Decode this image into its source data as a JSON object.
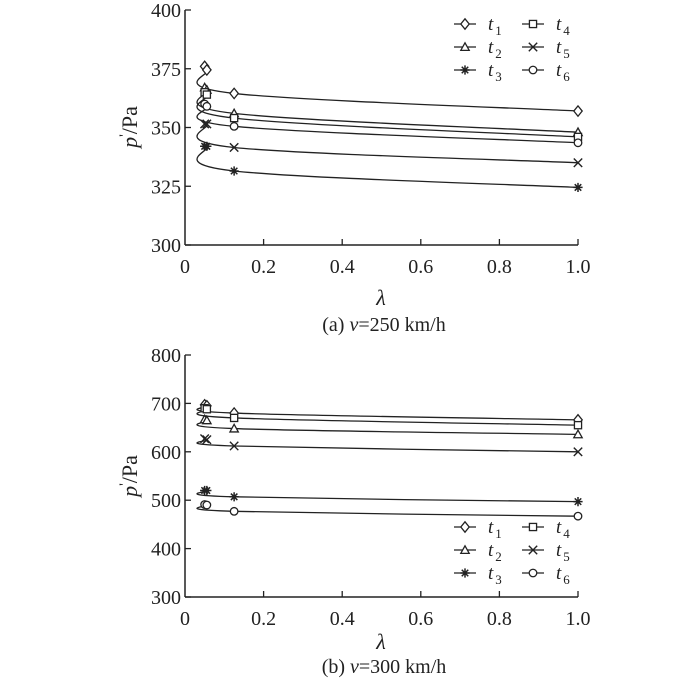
{
  "chart_data": [
    {
      "type": "line",
      "caption": {
        "prefix": "(a) ",
        "var": "v",
        "rest": "=250 km/h"
      },
      "xlabel": "λ",
      "ylabel": {
        "main": "p",
        "prime": "'",
        "unit": "/Pa"
      },
      "xlim": [
        0,
        1.0
      ],
      "ylim": [
        300,
        400
      ],
      "xticks": [
        "0",
        "0.2",
        "0.4",
        "0.6",
        "0.8",
        "1.0"
      ],
      "xtick_values": [
        0,
        0.2,
        0.4,
        0.6,
        0.8,
        1.0
      ],
      "yticks": [
        "300",
        "325",
        "350",
        "375",
        "400"
      ],
      "ytick_values": [
        300,
        325,
        350,
        375,
        400
      ],
      "grid": false,
      "legend_position": "top-right",
      "x": [
        0.05,
        0.0556,
        0.125,
        1.0
      ],
      "series": [
        {
          "name": "t",
          "sub": "1",
          "marker": "diamond",
          "values": [
            376,
            374.5,
            364.5,
            357
          ]
        },
        {
          "name": "t",
          "sub": "2",
          "marker": "triangle",
          "values": [
            367,
            366,
            356,
            348
          ]
        },
        {
          "name": "t",
          "sub": "3",
          "marker": "asterisk",
          "values": [
            342,
            342,
            331.5,
            324.5
          ]
        },
        {
          "name": "t",
          "sub": "4",
          "marker": "square",
          "values": [
            365,
            364,
            354,
            346
          ]
        },
        {
          "name": "t",
          "sub": "5",
          "marker": "x",
          "values": [
            351.5,
            351.5,
            341.5,
            335
          ]
        },
        {
          "name": "t",
          "sub": "6",
          "marker": "circle",
          "values": [
            360,
            359,
            350.5,
            343.5
          ]
        }
      ]
    },
    {
      "type": "line",
      "caption": {
        "prefix": "(b) ",
        "var": "v",
        "rest": "=300 km/h"
      },
      "xlabel": "λ",
      "ylabel": {
        "main": "p",
        "prime": "'",
        "unit": "/Pa"
      },
      "xlim": [
        0,
        1.0
      ],
      "ylim": [
        300,
        800
      ],
      "xticks": [
        "0",
        "0.2",
        "0.4",
        "0.6",
        "0.8",
        "1.0"
      ],
      "xtick_values": [
        0,
        0.2,
        0.4,
        0.6,
        0.8,
        1.0
      ],
      "yticks": [
        "300",
        "400",
        "500",
        "600",
        "700",
        "800"
      ],
      "ytick_values": [
        300,
        400,
        500,
        600,
        700,
        800
      ],
      "grid": false,
      "legend_position": "bottom-right",
      "x": [
        0.05,
        0.0556,
        0.125,
        1.0
      ],
      "series": [
        {
          "name": "t",
          "sub": "1",
          "marker": "diamond",
          "values": [
            697,
            695,
            680,
            666
          ]
        },
        {
          "name": "t",
          "sub": "2",
          "marker": "triangle",
          "values": [
            667,
            665,
            648,
            636
          ]
        },
        {
          "name": "t",
          "sub": "3",
          "marker": "asterisk",
          "values": [
            520,
            520,
            507,
            497
          ]
        },
        {
          "name": "t",
          "sub": "4",
          "marker": "square",
          "values": [
            690,
            688,
            670,
            655
          ]
        },
        {
          "name": "t",
          "sub": "5",
          "marker": "x",
          "values": [
            627,
            625,
            612,
            600
          ]
        },
        {
          "name": "t",
          "sub": "6",
          "marker": "circle",
          "values": [
            491,
            490,
            477,
            467
          ]
        }
      ]
    }
  ]
}
